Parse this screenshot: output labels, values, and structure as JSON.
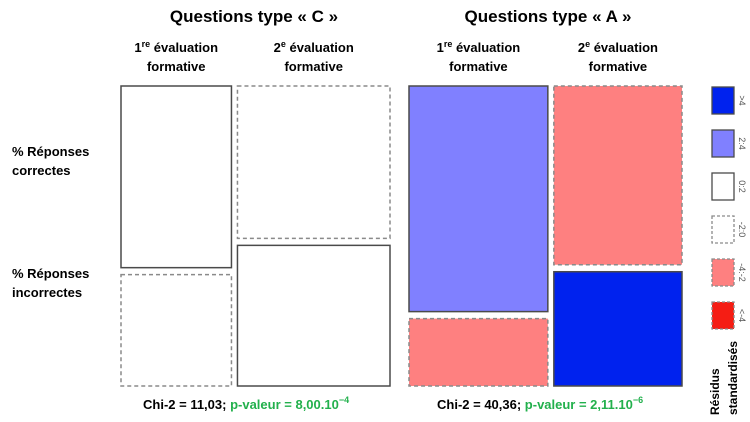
{
  "chart_data": [
    {
      "type": "mosaic",
      "title": "Questions type « C »",
      "columns": [
        {
          "label_num": "1",
          "label_sup": "re",
          "label_rest": " évaluation",
          "label_line2": "formative"
        },
        {
          "label_num": "2",
          "label_sup": "e",
          "label_rest": " évaluation",
          "label_line2": "formative"
        }
      ],
      "rows": [
        {
          "line1": "% Réponses",
          "line2": "correctes"
        },
        {
          "line1": "% Réponses",
          "line2": "incorrectes"
        }
      ],
      "column_proportions": [
        0.42,
        0.58
      ],
      "cells": [
        {
          "col": 0,
          "row": 0,
          "proportion": 0.62,
          "residual_class": "0:2"
        },
        {
          "col": 0,
          "row": 1,
          "proportion": 0.38,
          "residual_class": "-2:0"
        },
        {
          "col": 1,
          "row": 0,
          "proportion": 0.52,
          "residual_class": "-2:0"
        },
        {
          "col": 1,
          "row": 1,
          "proportion": 0.48,
          "residual_class": "0:2"
        }
      ],
      "stat_main": "Chi-2 = 11,03; ",
      "stat_p": "p-valeur = 8,00.10",
      "stat_exp": "−4"
    },
    {
      "type": "mosaic",
      "title": "Questions type « A »",
      "columns": [
        {
          "label_num": "1",
          "label_sup": "re",
          "label_rest": " évaluation",
          "label_line2": "formative"
        },
        {
          "label_num": "2",
          "label_sup": "e",
          "label_rest": " évaluation",
          "label_line2": "formative"
        }
      ],
      "rows": [
        {
          "line1": "% Réponses",
          "line2": "correctes"
        },
        {
          "line1": "% Réponses",
          "line2": "incorrectes"
        }
      ],
      "column_proportions": [
        0.52,
        0.48
      ],
      "cells": [
        {
          "col": 0,
          "row": 0,
          "proportion": 0.77,
          "residual_class": "2:4"
        },
        {
          "col": 0,
          "row": 1,
          "proportion": 0.23,
          "residual_class": "-4:-2"
        },
        {
          "col": 1,
          "row": 0,
          "proportion": 0.61,
          "residual_class": "-4:-2"
        },
        {
          "col": 1,
          "row": 1,
          "proportion": 0.39,
          "residual_class": ">4"
        }
      ],
      "stat_main": "Chi-2 = 40,36; ",
      "stat_p": "p-valeur = 2,11.10",
      "stat_exp": "−6"
    }
  ],
  "legend": {
    "title_line1": "Résidus",
    "title_line2": "standardisés",
    "items": [
      {
        "label": ">4",
        "color": "#0022ee",
        "dashed": false
      },
      {
        "label": "2:4",
        "color": "#8080ff",
        "dashed": false
      },
      {
        "label": "0:2",
        "color": "#ffffff",
        "dashed": false
      },
      {
        "label": "-2:0",
        "color": "#ffffff",
        "dashed": true
      },
      {
        "label": "-4:-2",
        "color": "#fe8080",
        "dashed": true
      },
      {
        "label": "<-4",
        "color": "#f51d14",
        "dashed": true
      }
    ]
  }
}
